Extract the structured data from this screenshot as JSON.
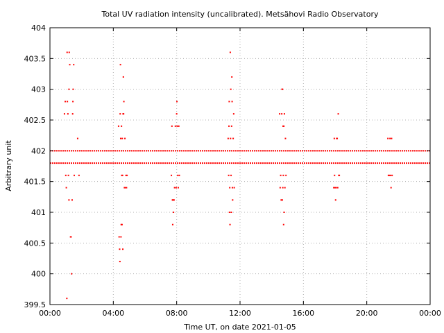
{
  "chart_data": {
    "type": "scatter",
    "title": "Total UV radiation intensity (uncalibrated). Metsähovi Radio Observatory",
    "xlabel": "Time UT, on date 2021-01-05",
    "ylabel": "Arbitrary unit",
    "xlim": [
      "00:00",
      "24:00"
    ],
    "ylim": [
      399.5,
      404
    ],
    "grid": true,
    "x_tick_labels": [
      "00:00",
      "04:00",
      "08:00",
      "12:00",
      "16:00",
      "20:00",
      "00:00"
    ],
    "y_ticks": [
      399.5,
      400,
      400.5,
      401,
      401.5,
      402,
      402.5,
      403,
      403.5,
      404
    ],
    "y_tick_labels": [
      "399.5",
      "400",
      "400.5",
      "401",
      "401.5",
      "402",
      "402.5",
      "403",
      "403.5",
      "404"
    ],
    "marker_color": "#ff0000",
    "series": [
      {
        "description": "dense baseline readings",
        "bands": [
          {
            "y": 401.8,
            "x_start": "00:00",
            "x_end": "24:00"
          },
          {
            "y": 402.0,
            "x_start": "00:00",
            "x_end": "24:00"
          }
        ]
      },
      {
        "description": "scattered excursions",
        "points": [
          [
            "00:55",
            402.6
          ],
          [
            "00:58",
            402.8
          ],
          [
            "01:00",
            401.6
          ],
          [
            "01:02",
            401.4
          ],
          [
            "01:04",
            399.6
          ],
          [
            "01:05",
            403.6
          ],
          [
            "01:06",
            402.8
          ],
          [
            "01:08",
            402.6
          ],
          [
            "01:10",
            401.6
          ],
          [
            "01:12",
            401.2
          ],
          [
            "01:12",
            403.0
          ],
          [
            "01:13",
            403.6
          ],
          [
            "01:15",
            403.4
          ],
          [
            "01:18",
            400.6
          ],
          [
            "01:20",
            400.6
          ],
          [
            "01:22",
            400.0
          ],
          [
            "01:24",
            401.2
          ],
          [
            "01:26",
            402.6
          ],
          [
            "01:27",
            402.8
          ],
          [
            "01:28",
            403.0
          ],
          [
            "01:30",
            403.4
          ],
          [
            "01:32",
            401.6
          ],
          [
            "01:45",
            402.2
          ],
          [
            "01:50",
            401.6
          ],
          [
            "04:20",
            402.4
          ],
          [
            "04:22",
            400.6
          ],
          [
            "04:24",
            400.4
          ],
          [
            "04:25",
            400.2
          ],
          [
            "04:26",
            402.6
          ],
          [
            "04:27",
            403.4
          ],
          [
            "04:28",
            402.2
          ],
          [
            "04:29",
            400.6
          ],
          [
            "04:30",
            400.8
          ],
          [
            "04:31",
            402.4
          ],
          [
            "04:32",
            401.6
          ],
          [
            "04:33",
            400.8
          ],
          [
            "04:34",
            402.2
          ],
          [
            "04:35",
            401.6
          ],
          [
            "04:36",
            400.4
          ],
          [
            "04:37",
            402.6
          ],
          [
            "04:38",
            403.2
          ],
          [
            "04:39",
            402.6
          ],
          [
            "04:40",
            402.8
          ],
          [
            "04:42",
            401.4
          ],
          [
            "04:44",
            402.2
          ],
          [
            "04:45",
            401.4
          ],
          [
            "04:48",
            401.6
          ],
          [
            "04:50",
            401.4
          ],
          [
            "04:52",
            401.6
          ],
          [
            "07:40",
            401.6
          ],
          [
            "07:42",
            402.4
          ],
          [
            "07:44",
            401.2
          ],
          [
            "07:45",
            400.8
          ],
          [
            "07:46",
            401.2
          ],
          [
            "07:48",
            401.0
          ],
          [
            "07:50",
            401.2
          ],
          [
            "07:52",
            401.4
          ],
          [
            "07:55",
            402.4
          ],
          [
            "07:58",
            401.4
          ],
          [
            "08:00",
            402.6
          ],
          [
            "08:01",
            402.8
          ],
          [
            "08:02",
            402.4
          ],
          [
            "08:04",
            401.6
          ],
          [
            "08:06",
            401.4
          ],
          [
            "08:08",
            402.4
          ],
          [
            "08:10",
            401.6
          ],
          [
            "11:15",
            402.2
          ],
          [
            "11:17",
            401.6
          ],
          [
            "11:18",
            402.4
          ],
          [
            "11:19",
            402.8
          ],
          [
            "11:20",
            401.0
          ],
          [
            "11:21",
            401.4
          ],
          [
            "11:22",
            400.8
          ],
          [
            "11:23",
            403.6
          ],
          [
            "11:24",
            402.2
          ],
          [
            "11:25",
            403.0
          ],
          [
            "11:26",
            401.6
          ],
          [
            "11:27",
            401.0
          ],
          [
            "11:28",
            402.4
          ],
          [
            "11:29",
            403.2
          ],
          [
            "11:30",
            402.8
          ],
          [
            "11:31",
            401.4
          ],
          [
            "11:32",
            401.2
          ],
          [
            "11:34",
            402.2
          ],
          [
            "11:36",
            402.6
          ],
          [
            "11:38",
            401.4
          ],
          [
            "14:30",
            402.6
          ],
          [
            "14:32",
            401.4
          ],
          [
            "14:34",
            401.6
          ],
          [
            "14:36",
            401.2
          ],
          [
            "14:38",
            402.6
          ],
          [
            "14:39",
            403.0
          ],
          [
            "14:40",
            401.2
          ],
          [
            "14:41",
            403.0
          ],
          [
            "14:42",
            401.4
          ],
          [
            "14:43",
            402.4
          ],
          [
            "14:44",
            401.6
          ],
          [
            "14:45",
            400.8
          ],
          [
            "14:46",
            402.4
          ],
          [
            "14:47",
            401.0
          ],
          [
            "14:48",
            402.6
          ],
          [
            "14:50",
            401.4
          ],
          [
            "14:52",
            402.2
          ],
          [
            "14:54",
            401.6
          ],
          [
            "17:55",
            401.4
          ],
          [
            "17:57",
            402.2
          ],
          [
            "17:58",
            401.6
          ],
          [
            "18:00",
            401.4
          ],
          [
            "18:02",
            401.2
          ],
          [
            "18:04",
            401.4
          ],
          [
            "18:06",
            402.2
          ],
          [
            "18:08",
            402.2
          ],
          [
            "18:10",
            401.4
          ],
          [
            "18:12",
            402.6
          ],
          [
            "18:14",
            401.6
          ],
          [
            "18:16",
            401.6
          ],
          [
            "21:20",
            402.2
          ],
          [
            "21:22",
            401.6
          ],
          [
            "21:25",
            401.6
          ],
          [
            "21:28",
            402.2
          ],
          [
            "21:30",
            401.6
          ],
          [
            "21:32",
            401.4
          ],
          [
            "21:34",
            402.2
          ],
          [
            "21:36",
            401.6
          ]
        ]
      }
    ]
  }
}
